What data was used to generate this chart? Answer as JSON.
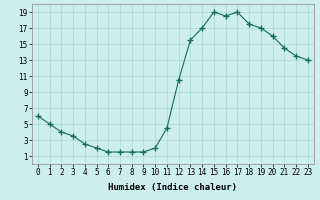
{
  "x": [
    0,
    1,
    2,
    3,
    4,
    5,
    6,
    7,
    8,
    9,
    10,
    11,
    12,
    13,
    14,
    15,
    16,
    17,
    18,
    19,
    20,
    21,
    22,
    23
  ],
  "y": [
    6,
    5,
    4,
    3.5,
    2.5,
    2,
    1.5,
    1.5,
    1.5,
    1.5,
    2,
    4.5,
    10.5,
    15.5,
    17,
    19,
    18.5,
    19,
    17.5,
    17,
    16,
    14.5,
    13.5,
    13
  ],
  "line_color": "#1a6b5a",
  "marker": "+",
  "marker_size": 4,
  "bg_color": "#cceeed",
  "grid_color": "#aad8d5",
  "xlabel": "Humidex (Indice chaleur)",
  "xlim": [
    -0.5,
    23.5
  ],
  "ylim": [
    0,
    20
  ],
  "xticks": [
    0,
    1,
    2,
    3,
    4,
    5,
    6,
    7,
    8,
    9,
    10,
    11,
    12,
    13,
    14,
    15,
    16,
    17,
    18,
    19,
    20,
    21,
    22,
    23
  ],
  "yticks": [
    1,
    3,
    5,
    7,
    9,
    11,
    13,
    15,
    17,
    19
  ],
  "xlabel_fontsize": 6.5,
  "tick_fontsize": 5.5
}
